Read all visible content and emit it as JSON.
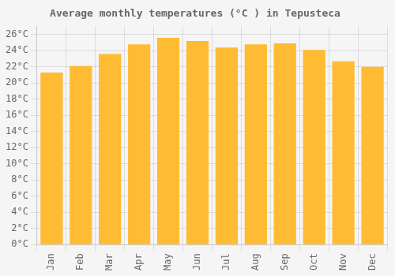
{
  "chart_data": {
    "type": "bar",
    "title": "Average monthly temperatures (°C ) in Tepusteca",
    "categories": [
      "Jan",
      "Feb",
      "Mar",
      "Apr",
      "May",
      "Jun",
      "Jul",
      "Aug",
      "Sep",
      "Oct",
      "Nov",
      "Dec"
    ],
    "values": [
      21.3,
      22.1,
      23.6,
      24.8,
      25.6,
      25.2,
      24.4,
      24.8,
      24.9,
      24.1,
      22.7,
      22.0
    ],
    "color": "#FFBB33",
    "ylim": [
      0,
      27
    ],
    "yticks": [
      {
        "value": 0,
        "label": "0°C"
      },
      {
        "value": 2,
        "label": "2°C"
      },
      {
        "value": 4,
        "label": "4°C"
      },
      {
        "value": 6,
        "label": "6°C"
      },
      {
        "value": 8,
        "label": "8°C"
      },
      {
        "value": 10,
        "label": "10°C"
      },
      {
        "value": 12,
        "label": "12°C"
      },
      {
        "value": 14,
        "label": "14°C"
      },
      {
        "value": 16,
        "label": "16°C"
      },
      {
        "value": 18,
        "label": "18°C"
      },
      {
        "value": 20,
        "label": "20°C"
      },
      {
        "value": 22,
        "label": "22°C"
      },
      {
        "value": 24,
        "label": "24°C"
      },
      {
        "value": 26,
        "label": "26°C"
      }
    ],
    "grid": true
  }
}
